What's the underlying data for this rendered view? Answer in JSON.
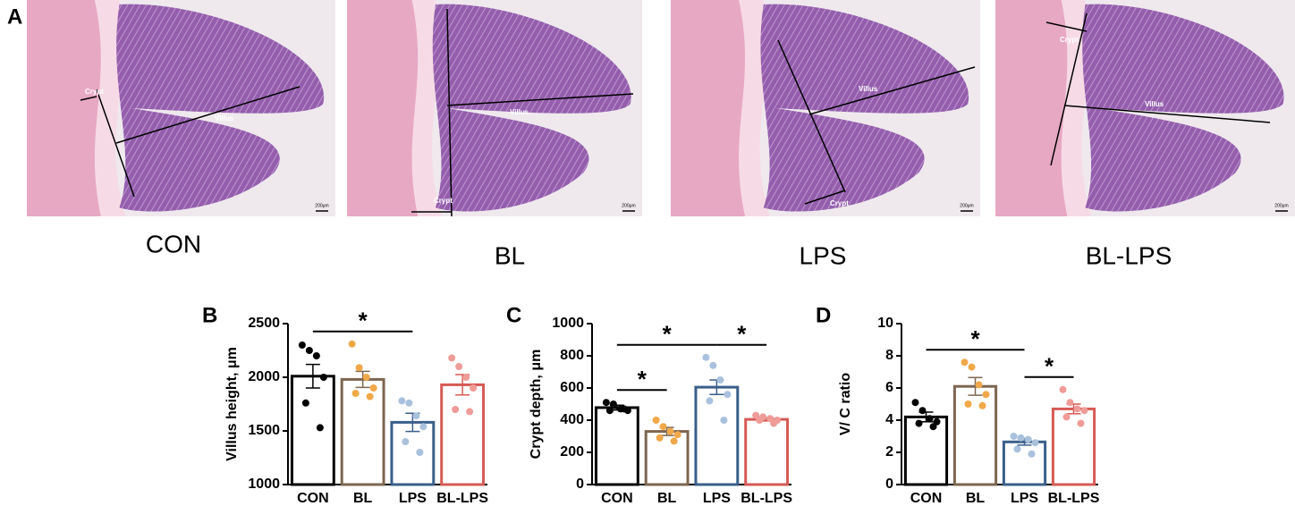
{
  "panel_a": {
    "label": "A",
    "images": [
      {
        "caption": "CON",
        "labels": [
          "Crypt",
          "Villus"
        ],
        "scale": "200μm"
      },
      {
        "caption": "BL",
        "labels": [
          "Crypt",
          "Villus"
        ],
        "scale": "200μm"
      },
      {
        "caption": "LPS",
        "labels": [
          "Crypt",
          "Villus"
        ],
        "scale": "200μm"
      },
      {
        "caption": "BL-LPS",
        "labels": [
          "Crypt",
          "Villus"
        ],
        "scale": "200μm"
      }
    ]
  },
  "chart_data": [
    {
      "type": "bar",
      "panel": "B",
      "ylabel": "Villus height, μm",
      "categories": [
        "CON",
        "BL",
        "LPS",
        "BL-LPS"
      ],
      "values": [
        2010,
        1980,
        1580,
        1930
      ],
      "errors": [
        110,
        75,
        85,
        95
      ],
      "points": [
        [
          2300,
          2250,
          2200,
          2000,
          1760,
          1530
        ],
        [
          2310,
          2090,
          2000,
          1900,
          1850,
          1820
        ],
        [
          1780,
          1760,
          1640,
          1540,
          1400,
          1300
        ],
        [
          2180,
          2100,
          2000,
          1900,
          1700,
          1680
        ]
      ],
      "colors": [
        "#000000",
        "#7d6650",
        "#3a5f8a",
        "#d65a55"
      ],
      "point_colors": [
        "#000000",
        "#f0a848",
        "#a9c1dc",
        "#ef9c98"
      ],
      "ylim": [
        1000,
        2500
      ],
      "yticks": [
        1000,
        1500,
        2000,
        2500
      ],
      "significance": [
        {
          "between": [
            0,
            2
          ],
          "label": "*"
        }
      ]
    },
    {
      "type": "bar",
      "panel": "C",
      "ylabel": "Crypt depth, μm",
      "categories": [
        "CON",
        "BL",
        "LPS",
        "BL-LPS"
      ],
      "values": [
        478,
        330,
        605,
        405
      ],
      "errors": [
        15,
        25,
        45,
        10
      ],
      "points": [
        [
          510,
          500,
          470,
          460,
          460,
          470
        ],
        [
          400,
          360,
          330,
          310,
          290,
          270
        ],
        [
          790,
          740,
          650,
          560,
          520,
          400
        ],
        [
          430,
          420,
          410,
          400,
          400,
          380
        ]
      ],
      "colors": [
        "#000000",
        "#7d6650",
        "#3a5f8a",
        "#d65a55"
      ],
      "point_colors": [
        "#000000",
        "#f0a848",
        "#a9c1dc",
        "#ef9c98"
      ],
      "ylim": [
        0,
        1000
      ],
      "yticks": [
        0,
        200,
        400,
        600,
        800,
        1000
      ],
      "significance": [
        {
          "between": [
            0,
            1
          ],
          "label": "*"
        },
        {
          "between": [
            0,
            2
          ],
          "label": "*"
        },
        {
          "between": [
            2,
            3
          ],
          "label": "*"
        }
      ]
    },
    {
      "type": "bar",
      "panel": "D",
      "ylabel": "V/ C ratio",
      "categories": [
        "CON",
        "BL",
        "LPS",
        "BL-LPS"
      ],
      "values": [
        4.2,
        6.1,
        2.65,
        4.7
      ],
      "errors": [
        0.3,
        0.55,
        0.2,
        0.3
      ],
      "points": [
        [
          5.1,
          4.6,
          4.1,
          3.9,
          3.8,
          3.6
        ],
        [
          7.6,
          7.3,
          6.2,
          5.6,
          5.0,
          4.9
        ],
        [
          3.0,
          2.9,
          2.8,
          2.6,
          2.2,
          1.9
        ],
        [
          5.9,
          5.1,
          4.7,
          4.6,
          4.2,
          3.8
        ]
      ],
      "colors": [
        "#000000",
        "#7d6650",
        "#3a5f8a",
        "#d65a55"
      ],
      "point_colors": [
        "#000000",
        "#f0a848",
        "#a9c1dc",
        "#ef9c98"
      ],
      "ylim": [
        0,
        10
      ],
      "yticks": [
        0,
        2,
        4,
        6,
        8,
        10
      ],
      "significance": [
        {
          "between": [
            0,
            2
          ],
          "label": "*"
        },
        {
          "between": [
            2,
            3
          ],
          "label": "*"
        }
      ]
    }
  ]
}
